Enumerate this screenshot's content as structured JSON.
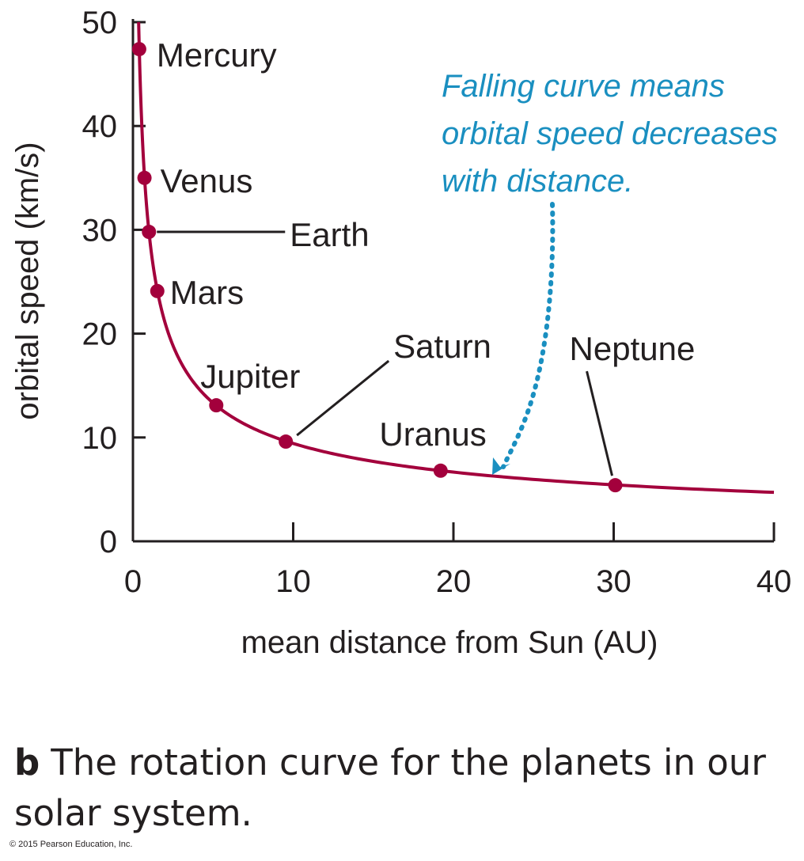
{
  "chart_data": {
    "type": "line",
    "xlabel": "mean distance from Sun (AU)",
    "ylabel": "orbital speed (km/s)",
    "xlim": [
      0,
      40
    ],
    "ylim": [
      0,
      50
    ],
    "x_ticks": [
      0,
      10,
      20,
      30,
      40
    ],
    "y_ticks": [
      0,
      10,
      20,
      30,
      40,
      50
    ],
    "grid": false,
    "curve_color": "#a3003c",
    "annotation_color": "#1a8fc0",
    "series": [
      {
        "points": [
          {
            "name": "Mercury",
            "x": 0.39,
            "y": 47.4
          },
          {
            "name": "Venus",
            "x": 0.72,
            "y": 35.0
          },
          {
            "name": "Earth",
            "x": 1.0,
            "y": 29.8
          },
          {
            "name": "Mars",
            "x": 1.52,
            "y": 24.1
          },
          {
            "name": "Jupiter",
            "x": 5.2,
            "y": 13.1
          },
          {
            "name": "Saturn",
            "x": 9.54,
            "y": 9.6
          },
          {
            "name": "Uranus",
            "x": 19.2,
            "y": 6.8
          },
          {
            "name": "Neptune",
            "x": 30.1,
            "y": 5.4
          }
        ]
      }
    ],
    "annotation": {
      "lines": [
        "Falling curve means",
        "orbital speed decreases",
        "with distance."
      ]
    }
  },
  "caption": {
    "letter": "b",
    "text": "The rotation curve for the planets in our solar system."
  },
  "copyright": "© 2015 Pearson Education, Inc."
}
